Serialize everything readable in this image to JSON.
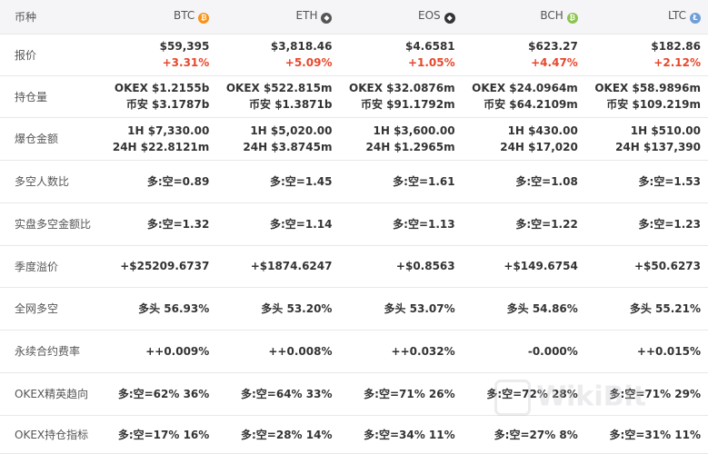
{
  "header": {
    "label": "币种",
    "coins": [
      {
        "name": "BTC",
        "icon": "bitcoin-icon",
        "color": "#f7931a",
        "glyph": "₿"
      },
      {
        "name": "ETH",
        "icon": "ethereum-icon",
        "color": "#555555",
        "glyph": "◆"
      },
      {
        "name": "EOS",
        "icon": "eos-icon",
        "color": "#333333",
        "glyph": "◆"
      },
      {
        "name": "BCH",
        "icon": "bitcoin-cash-icon",
        "color": "#8dc351",
        "glyph": "₿"
      },
      {
        "name": "LTC",
        "icon": "litecoin-icon",
        "color": "#6f9fd8",
        "glyph": "Ł"
      }
    ]
  },
  "rows": {
    "price": {
      "label": "报价",
      "cells": [
        {
          "l1": "$59,395",
          "l2": "+3.31%"
        },
        {
          "l1": "$3,818.46",
          "l2": "+5.09%"
        },
        {
          "l1": "$4.6581",
          "l2": "+1.05%"
        },
        {
          "l1": "$623.27",
          "l2": "+4.47%"
        },
        {
          "l1": "$182.86",
          "l2": "+2.12%"
        }
      ]
    },
    "open_interest": {
      "label": "持仓量",
      "cells": [
        {
          "l1": "OKEX  $1.2155b",
          "l2": "币安  $3.1787b"
        },
        {
          "l1": "OKEX  $522.815m",
          "l2": "币安  $1.3871b"
        },
        {
          "l1": "OKEX  $32.0876m",
          "l2": "币安  $91.1792m"
        },
        {
          "l1": "OKEX  $24.0964m",
          "l2": "币安  $64.2109m"
        },
        {
          "l1": "OKEX  $58.9896m",
          "l2": "币安  $109.219m"
        }
      ]
    },
    "liquidation": {
      "label": "爆仓金额",
      "cells": [
        {
          "l1": "1H  $7,330.00",
          "l2": "24H  $22.8121m"
        },
        {
          "l1": "1H  $5,020.00",
          "l2": "24H  $3.8745m"
        },
        {
          "l1": "1H  $3,600.00",
          "l2": "24H  $1.2965m"
        },
        {
          "l1": "1H  $430.00",
          "l2": "24H  $17,020"
        },
        {
          "l1": "1H  $510.00",
          "l2": "24H  $137,390"
        }
      ]
    },
    "ls_ratio": {
      "label": "多空人数比",
      "cells": [
        "多:空=0.89",
        "多:空=1.45",
        "多:空=1.61",
        "多:空=1.08",
        "多:空=1.53"
      ]
    },
    "real_ratio": {
      "label": "实盘多空金额比",
      "cells": [
        "多:空=1.32",
        "多:空=1.14",
        "多:空=1.13",
        "多:空=1.22",
        "多:空=1.23"
      ]
    },
    "premium": {
      "label": "季度溢价",
      "cells": [
        "+$25209.6737",
        "+$1874.6247",
        "+$0.8563",
        "+$149.6754",
        "+$50.6273"
      ]
    },
    "network": {
      "label": "全网多空",
      "cells": [
        "多头  56.93%",
        "多头  53.20%",
        "多头  53.07%",
        "多头  54.86%",
        "多头  55.21%"
      ]
    },
    "funding": {
      "label": "永续合约费率",
      "cells": [
        "++0.009%",
        "++0.008%",
        "++0.032%",
        "-0.000%",
        "++0.015%"
      ]
    },
    "elite": {
      "label": "OKEX精英趋向",
      "cells": [
        "多:空=62%  36%",
        "多:空=64%  33%",
        "多:空=71%  26%",
        "多:空=72%  28%",
        "多:空=71%  29%"
      ]
    },
    "position_index": {
      "label": "OKEX持仓指标",
      "cells": [
        "多:空=17%  16%",
        "多:空=28%  14%",
        "多:空=34%  11%",
        "多:空=27%  8%",
        "多:空=31%  11%"
      ]
    }
  },
  "watermark": "WikiBit"
}
